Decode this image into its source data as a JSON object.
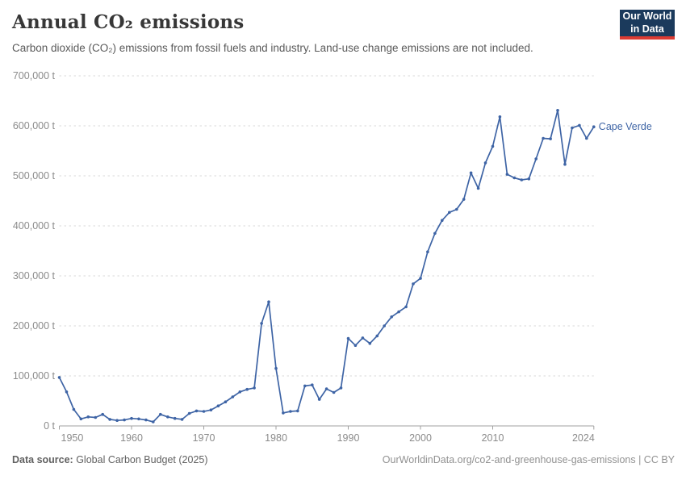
{
  "header": {
    "title": "Annual CO₂ emissions",
    "subtitle": "Carbon dioxide (CO₂) emissions from fossil fuels and industry. Land-use change emissions are not included.",
    "logo": {
      "line1": "Our World",
      "line2": "in Data"
    }
  },
  "footer": {
    "source_label": "Data source:",
    "source_text": " Global Carbon Budget (2025)",
    "link_text": "OurWorldinData.org/co2-and-greenhouse-gas-emissions | CC BY"
  },
  "colors": {
    "line": "#3e64a5",
    "entity_label": "#3e64a5",
    "grid": "#dadada",
    "axis": "#a0a0a0",
    "tick_label": "#8b8b8b",
    "logo_bg": "#1b3a5c",
    "logo_underline": "#dc3b33"
  },
  "chart_data": {
    "type": "line",
    "title": "Annual CO₂ emissions",
    "entity": "Cape Verde",
    "unit": "t",
    "xlabel": "",
    "ylabel": "",
    "ylim": [
      0,
      700000
    ],
    "xlim": [
      1950,
      2024
    ],
    "grid": "horizontal-dashed",
    "legend_position": "end-of-line-label",
    "y_ticks": [
      0,
      100000,
      200000,
      300000,
      400000,
      500000,
      600000,
      700000
    ],
    "x_ticks": [
      1950,
      1960,
      1970,
      1980,
      1990,
      2000,
      2010,
      2024
    ],
    "x": [
      1950,
      1951,
      1952,
      1953,
      1954,
      1955,
      1956,
      1957,
      1958,
      1959,
      1960,
      1961,
      1962,
      1963,
      1964,
      1965,
      1966,
      1967,
      1968,
      1969,
      1970,
      1971,
      1972,
      1973,
      1974,
      1975,
      1976,
      1977,
      1978,
      1979,
      1980,
      1981,
      1982,
      1983,
      1984,
      1985,
      1986,
      1987,
      1988,
      1989,
      1990,
      1991,
      1992,
      1993,
      1994,
      1995,
      1996,
      1997,
      1998,
      1999,
      2000,
      2001,
      2002,
      2003,
      2004,
      2005,
      2006,
      2007,
      2008,
      2009,
      2010,
      2011,
      2012,
      2013,
      2014,
      2015,
      2016,
      2017,
      2018,
      2019,
      2020,
      2021,
      2022,
      2023,
      2024
    ],
    "values": [
      97000,
      68000,
      33000,
      14000,
      18000,
      17000,
      23000,
      13000,
      11000,
      12000,
      15000,
      14000,
      12000,
      8000,
      23000,
      18000,
      15000,
      13000,
      25000,
      30000,
      29000,
      32000,
      40000,
      48000,
      58000,
      68000,
      73000,
      76000,
      205000,
      248000,
      115000,
      26000,
      29000,
      30000,
      80000,
      82000,
      53000,
      74000,
      67000,
      76000,
      175000,
      161000,
      176000,
      165000,
      180000,
      200000,
      218000,
      228000,
      238000,
      284000,
      295000,
      348000,
      385000,
      411000,
      427000,
      433000,
      453000,
      506000,
      475000,
      526000,
      559000,
      618000,
      503000,
      496000,
      492000,
      494000,
      534000,
      575000,
      574000,
      631000,
      523000,
      596000,
      601000,
      575000,
      598000
    ]
  }
}
